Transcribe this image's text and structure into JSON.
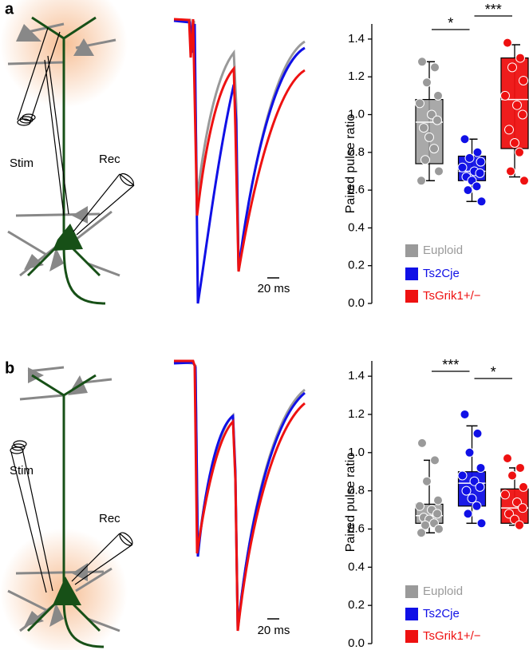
{
  "panels": [
    {
      "label": "a",
      "stim": "Stim",
      "rec": "Rec",
      "scale_bar": "20 ms"
    },
    {
      "label": "b",
      "stim": "Stim",
      "rec": "Rec",
      "scale_bar": "20 ms"
    }
  ],
  "chart_data": [
    {
      "type": "box",
      "ylabel": "Paired pulse ratio",
      "ylim": [
        0,
        1.48
      ],
      "yticks": [
        {
          "value": 0,
          "label": "0.0"
        },
        0.2,
        0.4,
        0.6,
        0.8,
        {
          "value": 1,
          "label": "1.0"
        },
        1.2,
        1.4
      ],
      "legend": "lower left",
      "series": [
        {
          "name": "Euploid",
          "color": "#9a9a9a",
          "whisker_low": 0.65,
          "q1": 0.74,
          "median": 0.96,
          "q3": 1.08,
          "whisker_high": 1.28,
          "points": [
            1.28,
            1.25,
            1.17,
            1.1,
            1.06,
            1.0,
            0.97,
            0.93,
            0.88,
            0.82,
            0.76,
            0.7,
            0.65
          ]
        },
        {
          "name": "Ts2Cje",
          "color": "#1010e6",
          "whisker_low": 0.54,
          "q1": 0.65,
          "median": 0.7,
          "q3": 0.78,
          "whisker_high": 0.87,
          "points": [
            0.87,
            0.8,
            0.77,
            0.75,
            0.72,
            0.7,
            0.69,
            0.67,
            0.65,
            0.62,
            0.6,
            0.54
          ]
        },
        {
          "name": "TsGrik1+/−",
          "color": "#ee1111",
          "whisker_low": 0.67,
          "q1": 0.82,
          "median": 1.08,
          "q3": 1.3,
          "whisker_high": 1.37,
          "points": [
            1.38,
            1.3,
            1.25,
            1.18,
            1.1,
            1.05,
            1.0,
            0.92,
            0.85,
            0.8,
            0.7,
            0.65
          ]
        }
      ],
      "annotations": [
        {
          "text": "*",
          "between": [
            "Euploid",
            "Ts2Cje"
          ]
        },
        {
          "text": "***",
          "between": [
            "Ts2Cje",
            "TsGrik1+/−"
          ]
        }
      ]
    },
    {
      "type": "box",
      "ylabel": "Paired pulse ratio",
      "ylim": [
        0,
        1.48
      ],
      "yticks": [
        {
          "value": 0,
          "label": "0.0"
        },
        0.2,
        0.4,
        0.6,
        0.8,
        {
          "value": 1,
          "label": "1.0"
        },
        1.2,
        1.4
      ],
      "legend": "lower left",
      "series": [
        {
          "name": "Euploid",
          "color": "#9a9a9a",
          "whisker_low": 0.58,
          "q1": 0.63,
          "median": 0.67,
          "q3": 0.73,
          "whisker_high": 0.96,
          "points": [
            1.05,
            0.96,
            0.85,
            0.75,
            0.72,
            0.7,
            0.68,
            0.66,
            0.65,
            0.63,
            0.62,
            0.6,
            0.58
          ]
        },
        {
          "name": "Ts2Cje",
          "color": "#1010e6",
          "whisker_low": 0.63,
          "q1": 0.72,
          "median": 0.84,
          "q3": 0.9,
          "whisker_high": 1.14,
          "points": [
            1.2,
            1.1,
            1.0,
            0.92,
            0.88,
            0.85,
            0.82,
            0.8,
            0.76,
            0.72,
            0.68,
            0.63
          ]
        },
        {
          "name": "TsGrik1+/−",
          "color": "#ee1111",
          "whisker_low": 0.62,
          "q1": 0.63,
          "median": 0.71,
          "q3": 0.81,
          "whisker_high": 0.92,
          "points": [
            0.97,
            0.92,
            0.88,
            0.82,
            0.78,
            0.74,
            0.71,
            0.68,
            0.65,
            0.62
          ]
        }
      ],
      "annotations": [
        {
          "text": "***",
          "between": [
            "Euploid",
            "Ts2Cje"
          ]
        },
        {
          "text": "*",
          "between": [
            "Ts2Cje",
            "TsGrik1+/−"
          ]
        }
      ]
    }
  ]
}
